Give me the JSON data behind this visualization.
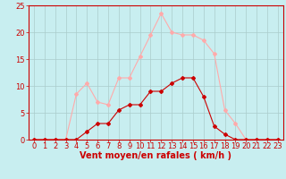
{
  "x": [
    0,
    1,
    2,
    3,
    4,
    5,
    6,
    7,
    8,
    9,
    10,
    11,
    12,
    13,
    14,
    15,
    16,
    17,
    18,
    19,
    20,
    21,
    22,
    23
  ],
  "y_mean": [
    0,
    0,
    0,
    0,
    0,
    1.5,
    3,
    3,
    5.5,
    6.5,
    6.5,
    9,
    9,
    10.5,
    11.5,
    11.5,
    8,
    2.5,
    1,
    0,
    0,
    0,
    0,
    0
  ],
  "y_gust": [
    0,
    0,
    0,
    0,
    8.5,
    10.5,
    7,
    6.5,
    11.5,
    11.5,
    15.5,
    19.5,
    23.5,
    20,
    19.5,
    19.5,
    18.5,
    16,
    5.5,
    3,
    0,
    0,
    0,
    0
  ],
  "xlabel": "Vent moyen/en rafales ( km/h )",
  "xlim_min": -0.5,
  "xlim_max": 23.5,
  "ylim_min": 0,
  "ylim_max": 25,
  "yticks": [
    0,
    5,
    10,
    15,
    20,
    25
  ],
  "xticks": [
    0,
    1,
    2,
    3,
    4,
    5,
    6,
    7,
    8,
    9,
    10,
    11,
    12,
    13,
    14,
    15,
    16,
    17,
    18,
    19,
    20,
    21,
    22,
    23
  ],
  "color_mean": "#cc0000",
  "color_gust": "#ffaaaa",
  "bg_color": "#c8eef0",
  "grid_color": "#aacccc",
  "marker": "D",
  "marker_size": 2.0,
  "line_width": 0.8,
  "xlabel_fontsize": 7,
  "tick_fontsize": 6,
  "label_color": "#cc0000"
}
